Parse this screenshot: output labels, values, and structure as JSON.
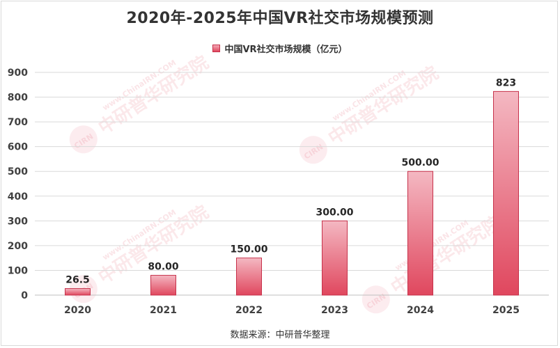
{
  "title": "2020年-2025年中国VR社交市场规模预测",
  "source": "数据来源：中研普华整理",
  "watermark": {
    "main": "中研普华研究院",
    "url": "www.ChinaIRN.COM",
    "badge": "CIRN"
  },
  "colors": {
    "bar_top": "#f4b8c2",
    "bar_bottom": "#e0475e",
    "bar_border": "#c6314a",
    "grid": "#d9d9d9",
    "text": "#333333"
  },
  "chart_data": {
    "type": "bar",
    "title": "2020年-2025年中国VR社交市场规模预测",
    "xlabel": "",
    "ylabel": "",
    "categories": [
      "2020",
      "2021",
      "2022",
      "2023",
      "2024",
      "2025"
    ],
    "series": [
      {
        "name": "中国VR社交市场规模（亿元）",
        "values": [
          26.5,
          80,
          150,
          300,
          500,
          823
        ],
        "labels": [
          "26.5",
          "80.00",
          "150.00",
          "300.00",
          "500.00",
          "823"
        ]
      }
    ],
    "ylim": [
      0,
      900
    ],
    "yticks": [
      0,
      100,
      200,
      300,
      400,
      500,
      600,
      700,
      800,
      900
    ],
    "grid": true,
    "legend": "top-center"
  }
}
